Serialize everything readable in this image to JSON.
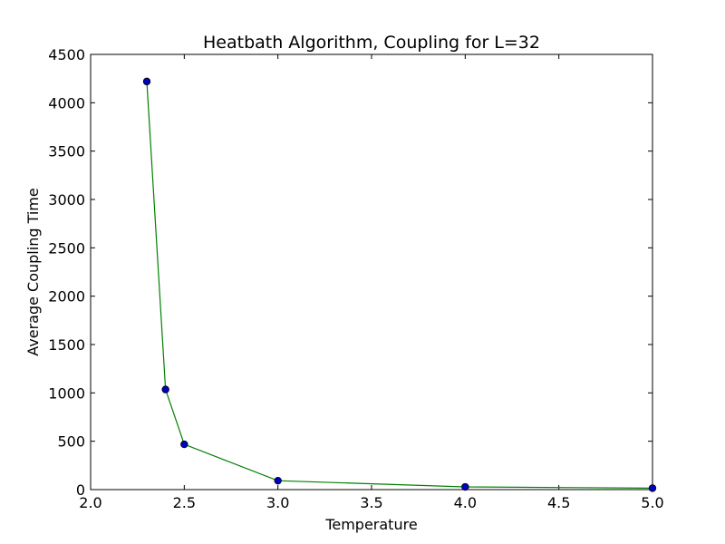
{
  "chart_data": {
    "type": "line",
    "title": "Heatbath Algorithm, Coupling for L=32",
    "xlabel": "Temperature",
    "ylabel": "Average Coupling Time",
    "xlim": [
      2.0,
      5.0
    ],
    "ylim": [
      0,
      4500
    ],
    "xticks": [
      2.0,
      2.5,
      3.0,
      3.5,
      4.0,
      4.5,
      5.0
    ],
    "xtick_labels": [
      "2.0",
      "2.5",
      "3.0",
      "3.5",
      "4.0",
      "4.5",
      "5.0"
    ],
    "yticks": [
      0,
      500,
      1000,
      1500,
      2000,
      2500,
      3000,
      3500,
      4000,
      4500
    ],
    "ytick_labels": [
      "0",
      "500",
      "1000",
      "1500",
      "2000",
      "2500",
      "3000",
      "3500",
      "4000",
      "4500"
    ],
    "grid": false,
    "series": [
      {
        "x": [
          2.3,
          2.4,
          2.5,
          3.0,
          4.0,
          5.0
        ],
        "y": [
          4220,
          1035,
          468,
          92,
          28,
          15
        ],
        "line_color": "#008000",
        "marker_color": "#0000bf"
      }
    ]
  }
}
